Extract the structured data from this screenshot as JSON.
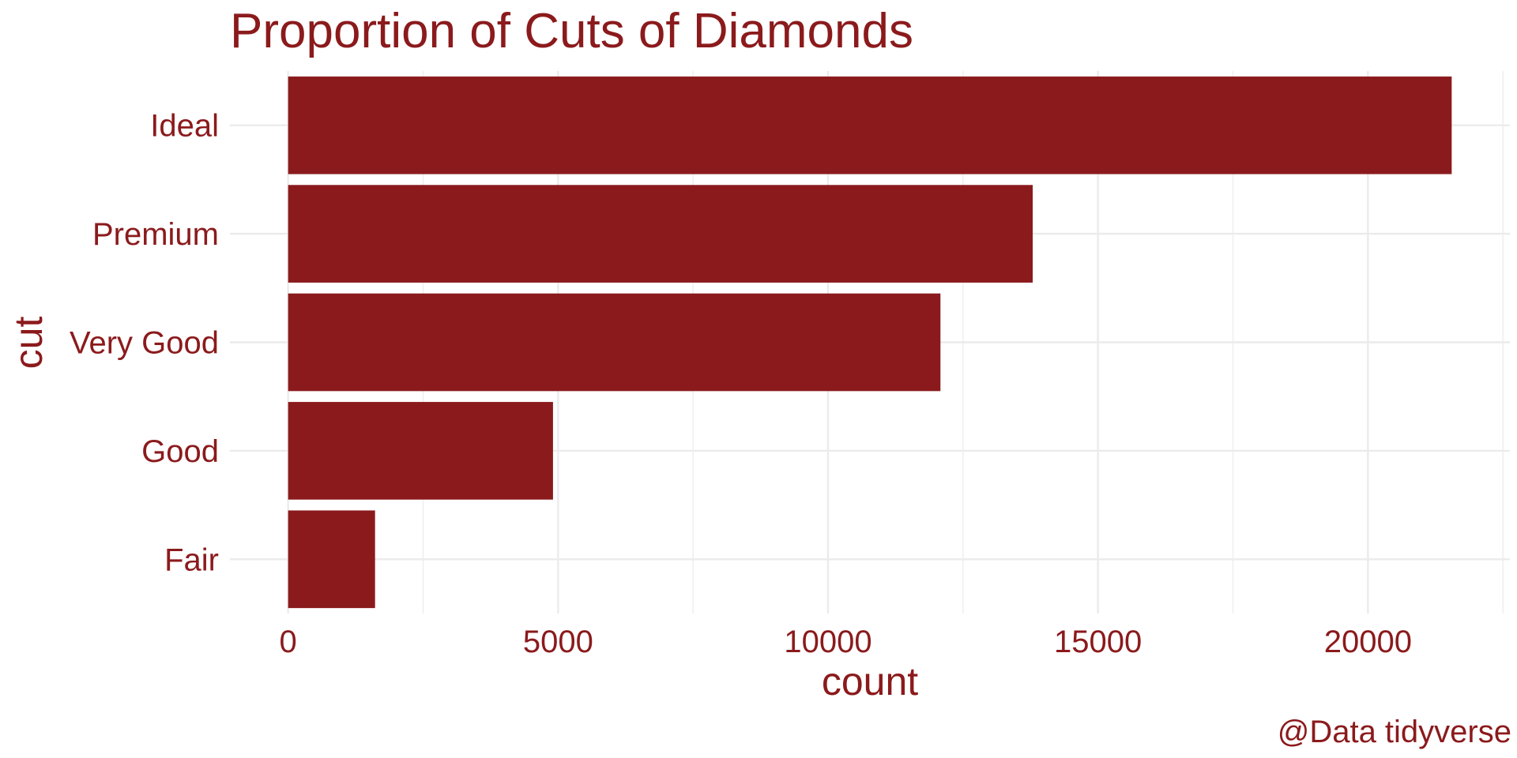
{
  "chart_data": {
    "type": "bar",
    "orientation": "horizontal",
    "title": "Proportion of Cuts of Diamonds",
    "xlabel": "count",
    "ylabel": "cut",
    "caption": "@Data tidyverse",
    "categories": [
      "Fair",
      "Good",
      "Very Good",
      "Premium",
      "Ideal"
    ],
    "values": [
      1610,
      4906,
      12082,
      13791,
      21551
    ],
    "x_ticks": [
      0,
      5000,
      10000,
      15000,
      20000
    ],
    "xlim": [
      -1078,
      22629
    ],
    "grid": true,
    "legend": "none",
    "colors": {
      "bar": "#8B1A1C",
      "text": "#8B1A1C",
      "grid": "#EBEBEB",
      "background": "#FFFFFF"
    }
  }
}
